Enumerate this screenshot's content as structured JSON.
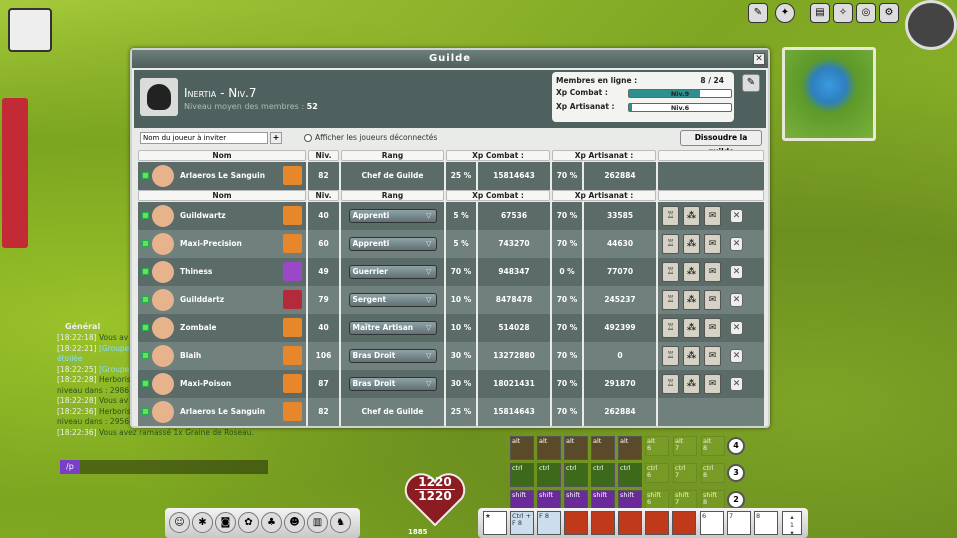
{
  "guild_window": {
    "title": "Guilde",
    "guild_name": "Inertia - Niv.7",
    "avg_label": "Niveau moyen des membres :",
    "avg_value": "52",
    "online_label": "Membres en ligne :",
    "online_value": "8 / 24",
    "xp_combat_label": "Xp Combat :",
    "xp_combat_level": "Niv.9",
    "xp_combat_progress": 0.7,
    "xp_craft_label": "Xp Artisanat :",
    "xp_craft_level": "Niv.6",
    "xp_craft_progress": 0.03,
    "invite_placeholder": "Nom du joueur à inviter",
    "show_offline_label": "Afficher les joueurs déconnectés",
    "dissolve_label": "Dissoudre la guilde",
    "columns": [
      "Nom",
      "Niv.",
      "Rang",
      "Xp Combat :",
      "Xp Artisanat :",
      ""
    ],
    "leader": {
      "name": "Arlaeros Le Sanguin",
      "level": "82",
      "rank": "Chef de Guilde",
      "xp_combat_pct": "25 %",
      "xp_combat": "15814643",
      "xp_craft_pct": "70 %",
      "xp_craft": "262884",
      "alignment": "orange"
    },
    "members": [
      {
        "name": "Guildwartz",
        "level": "40",
        "rank": "Apprenti",
        "xp_combat_pct": "5 %",
        "xp_combat": "67536",
        "xp_craft_pct": "70 %",
        "xp_craft": "33585",
        "alignment": "orange",
        "editable": true
      },
      {
        "name": "Maxi-Precision",
        "level": "60",
        "rank": "Apprenti",
        "xp_combat_pct": "5 %",
        "xp_combat": "743270",
        "xp_craft_pct": "70 %",
        "xp_craft": "44630",
        "alignment": "orange",
        "editable": true
      },
      {
        "name": "Thiness",
        "level": "49",
        "rank": "Guerrier",
        "xp_combat_pct": "70 %",
        "xp_combat": "948347",
        "xp_craft_pct": "0 %",
        "xp_craft": "77070",
        "alignment": "purple",
        "editable": true
      },
      {
        "name": "Guilddartz",
        "level": "79",
        "rank": "Sergent",
        "xp_combat_pct": "10 %",
        "xp_combat": "8478478",
        "xp_craft_pct": "70 %",
        "xp_craft": "245237",
        "alignment": "red",
        "editable": true
      },
      {
        "name": "Zombale",
        "level": "40",
        "rank": "Maître Artisan",
        "xp_combat_pct": "10 %",
        "xp_combat": "514028",
        "xp_craft_pct": "70 %",
        "xp_craft": "492399",
        "alignment": "orange",
        "editable": true
      },
      {
        "name": "Blaih",
        "level": "106",
        "rank": "Bras Droit",
        "xp_combat_pct": "30 %",
        "xp_combat": "13272880",
        "xp_craft_pct": "70 %",
        "xp_craft": "0",
        "alignment": "orange",
        "editable": true
      },
      {
        "name": "Maxi-Poison",
        "level": "87",
        "rank": "Bras Droit",
        "xp_combat_pct": "30 %",
        "xp_combat": "18021431",
        "xp_craft_pct": "70 %",
        "xp_craft": "291870",
        "alignment": "orange",
        "editable": true
      },
      {
        "name": "Arlaeros Le Sanguin",
        "level": "82",
        "rank": "Chef de Guilde",
        "xp_combat_pct": "25 %",
        "xp_combat": "15814643",
        "xp_craft_pct": "70 %",
        "xp_craft": "262884",
        "alignment": "orange",
        "editable": false
      }
    ]
  },
  "chat": {
    "channel": "Général",
    "lines": [
      {
        "time": "[18:22:18]",
        "text": "Vous av",
        "cls": "g"
      },
      {
        "time": "[18:22:21]",
        "text": "[Groupe",
        "cls": ""
      },
      {
        "time": "",
        "text": "étoilée",
        "cls": ""
      },
      {
        "time": "[18:22:25]",
        "text": "[Groupe",
        "cls": ""
      },
      {
        "time": "[18:22:28]",
        "text": "Herboris",
        "cls": "g"
      },
      {
        "time": "",
        "text": "niveau dans : 2986",
        "cls": "g"
      },
      {
        "time": "[18:22:28]",
        "text": "Vous av",
        "cls": "g"
      },
      {
        "time": "[18:22:36]",
        "text": "Herboris",
        "cls": "g"
      },
      {
        "time": "",
        "text": "niveau dans : 2956.",
        "cls": "g"
      },
      {
        "time": "[18:22:36]",
        "text": "Vous avez ramassé 1x Graine de Roseau.",
        "cls": "g"
      }
    ],
    "input_prefix": "/p"
  },
  "hud": {
    "hp_current": "1220",
    "hp_max": "1220",
    "xp_value": "1885",
    "spell_rows": [
      {
        "modifier": "alt",
        "page": "4"
      },
      {
        "modifier": "ctrl",
        "page": "3"
      },
      {
        "modifier": "shift",
        "page": "2"
      }
    ],
    "spell_slots_empty": [
      "6",
      "7",
      "8"
    ],
    "bar_page": "1",
    "shortcut_labels": [
      "Ctrl + F",
      "F"
    ],
    "shortcut_counts": [
      "8",
      "8"
    ]
  }
}
